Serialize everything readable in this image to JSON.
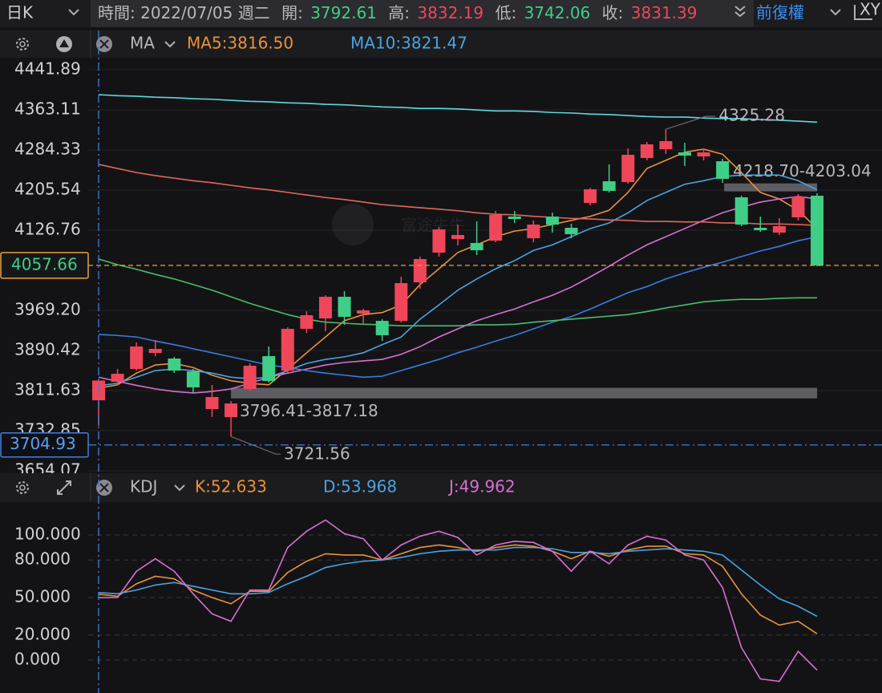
{
  "toolbar": {
    "period": "日K",
    "time": "時間: 2022/07/05 週二",
    "open_label": "開:",
    "open": 3792.61,
    "high_label": "高:",
    "high": 3832.19,
    "low_label": "低:",
    "low": 3742.06,
    "close_label": "收:",
    "close": 3831.39,
    "adjust": "前復權",
    "axis_toggle": "XY"
  },
  "chart_data": [
    {
      "type": "candlestick",
      "indicator": "MA",
      "watermark": "富途牛牛",
      "up_color": "#f0465a",
      "down_color": "#3fce86",
      "open": [
        3792.61,
        3829.0,
        3854.2,
        3885.7,
        3874.7,
        3849.5,
        3775.4,
        3759.7,
        3814.8,
        3879.4,
        3851.0,
        3933.0,
        3953.5,
        3996.0,
        3962.9,
        3948.7,
        3948.7,
        4024.4,
        4082.7,
        4109.4,
        4101.6,
        4106.3,
        4153.6,
        4111.0,
        4153.6,
        4131.5,
        4180.3,
        4222.9,
        4221.3,
        4268.6,
        4285.9,
        4279.6,
        4271.7,
        4262.3,
        4191.4,
        4131.5,
        4122.1,
        4152.0,
        4194.5
      ],
      "high": [
        3832.19,
        3854.2,
        3906.2,
        3910.9,
        3877.8,
        3854.2,
        3822.7,
        3791.2,
        3865.2,
        3898.3,
        3936.1,
        3967.6,
        3999.2,
        4007.0,
        3972.4,
        3951.9,
        4035.4,
        4074.8,
        4133.1,
        4137.8,
        4144.1,
        4164.6,
        4164.6,
        4145.7,
        4161.4,
        4139.4,
        4210.3,
        4256.0,
        4287.5,
        4300.1,
        4325.28,
        4298.5,
        4287.5,
        4267.0,
        4194.5,
        4153.6,
        4150.4,
        4197.7,
        4199.3
      ],
      "low": [
        3742.06,
        3822.7,
        3851.0,
        3879.4,
        3846.3,
        3806.9,
        3759.7,
        3721.56,
        3811.7,
        3827.4,
        3846.3,
        3925.1,
        3928.3,
        3940.9,
        3942.4,
        3909.3,
        3945.6,
        4011.8,
        4074.8,
        4096.8,
        4077.9,
        4103.1,
        4141.0,
        4103.1,
        4122.1,
        4111.0,
        4175.6,
        4200.8,
        4218.2,
        4263.9,
        4276.5,
        4252.8,
        4263.9,
        4219.7,
        4134.7,
        4123.6,
        4117.3,
        4145.7,
        4055.9
      ],
      "close": [
        3831.39,
        3844.7,
        3898.3,
        3893.6,
        3851.0,
        3818.0,
        3799.1,
        3786.4,
        3860.5,
        3830.6,
        3933.0,
        3959.8,
        3996.0,
        3956.6,
        3969.2,
        3920.4,
        4022.8,
        4070.1,
        4128.4,
        4117.3,
        4087.4,
        4156.7,
        4148.8,
        4137.8,
        4137.8,
        4118.9,
        4207.1,
        4204.0,
        4274.9,
        4295.4,
        4301.7,
        4273.3,
        4279.6,
        4227.6,
        4137.8,
        4126.8,
        4134.7,
        4193.0,
        4057.66
      ],
      "series": [
        {
          "name": "MA5",
          "label": "MA5:3816.50",
          "color": "#e8923a",
          "values": [
            3816.5,
            3823,
            3846,
            3862,
            3865,
            3857,
            3842,
            3831,
            3826,
            3823,
            3854,
            3886,
            3917,
            3949,
            3961,
            3965,
            3980,
            4020,
            4051,
            4083,
            4098,
            4114,
            4125,
            4130,
            4138,
            4146,
            4154,
            4166,
            4201,
            4248,
            4264,
            4280,
            4286,
            4276,
            4240,
            4201,
            4188,
            4166,
            4130
          ]
        },
        {
          "name": "MA10",
          "label": "MA10:3821.47",
          "color": "#4aa3e0",
          "values": [
            3821.47,
            3826,
            3838,
            3851,
            3854,
            3851,
            3846,
            3838,
            3835,
            3838,
            3851,
            3865,
            3873,
            3878,
            3886,
            3902,
            3917,
            3952,
            3980,
            4009,
            4031,
            4051,
            4067,
            4087,
            4098,
            4114,
            4130,
            4141,
            4161,
            4185,
            4201,
            4217,
            4224,
            4232,
            4235,
            4235,
            4235,
            4224,
            4206
          ]
        },
        {
          "color": "#d86fd0",
          "values": [
            3838,
            3830,
            3822,
            3815,
            3810,
            3807,
            3810,
            3815,
            3826,
            3838,
            3846,
            3854,
            3862,
            3867,
            3870,
            3873,
            3883,
            3898,
            3917,
            3933,
            3949,
            3961,
            3972,
            3986,
            3999,
            4015,
            4035,
            4056,
            4078,
            4098,
            4114,
            4130,
            4146,
            4161,
            4172,
            4182,
            4188,
            4193,
            4188
          ]
        },
        {
          "color": "#3a7be0",
          "values": [
            3922,
            3920,
            3917,
            3909,
            3902,
            3894,
            3886,
            3878,
            3870,
            3862,
            3857,
            3851,
            3846,
            3842,
            3838,
            3840,
            3851,
            3862,
            3873,
            3886,
            3897,
            3909,
            3920,
            3933,
            3946,
            3957,
            3972,
            3988,
            4004,
            4016,
            4031,
            4043,
            4054,
            4064,
            4075,
            4086,
            4095,
            4106,
            4114
          ]
        },
        {
          "color": "#4cbb6a",
          "values": [
            4070,
            4059,
            4050,
            4040,
            4031,
            4020,
            4009,
            3996,
            3983,
            3972,
            3961,
            3952,
            3946,
            3944,
            3942,
            3941,
            3939,
            3939,
            3939,
            3939,
            3941,
            3941,
            3942,
            3946,
            3949,
            3952,
            3955,
            3958,
            3961,
            3967,
            3974,
            3980,
            3986,
            3989,
            3991,
            3991,
            3993,
            3994,
            3994
          ]
        },
        {
          "color": "#e0685a",
          "values": [
            4256,
            4248,
            4240,
            4234,
            4229,
            4224,
            4220,
            4215,
            4210,
            4206,
            4201,
            4196,
            4191,
            4187,
            4182,
            4177,
            4174,
            4171,
            4168,
            4165,
            4161,
            4158,
            4157,
            4154,
            4152,
            4150,
            4149,
            4147,
            4146,
            4144,
            4144,
            4143,
            4143,
            4141,
            4141,
            4139,
            4139,
            4138,
            4136
          ]
        },
        {
          "color": "#5fd8e0",
          "values": [
            4393,
            4391,
            4390,
            4388,
            4387,
            4385,
            4384,
            4382,
            4380,
            4379,
            4377,
            4376,
            4374,
            4373,
            4371,
            4369,
            4368,
            4366,
            4366,
            4365,
            4363,
            4361,
            4361,
            4360,
            4358,
            4357,
            4355,
            4354,
            4352,
            4350,
            4349,
            4349,
            4347,
            4346,
            4346,
            4344,
            4343,
            4341,
            4339
          ]
        }
      ],
      "ylim": [
        3652.52,
        4515.95
      ],
      "yticks": [
        4441.89,
        4363.11,
        4284.33,
        4205.54,
        4126.76,
        {
          "value": 3969.2,
          "label": "3969.20"
        },
        3890.42,
        3811.63,
        3732.85,
        3654.07
      ],
      "grid": true,
      "high_marker": 4325.28,
      "low_marker": 3721.56,
      "bands": [
        {
          "label": "3796.41-3817.18",
          "values": [
            3796.41,
            3817.18
          ]
        },
        {
          "label": "4218.70-4203.04",
          "values": [
            4218.7,
            4203.04
          ]
        }
      ],
      "current_price": 4057.66,
      "crosshair": 3704.93
    },
    {
      "type": "line",
      "indicator": "KDJ",
      "series": [
        {
          "name": "K",
          "label": "K:52.633",
          "color": "#e8923a",
          "values": [
            52.633,
            51,
            61,
            67,
            65,
            56,
            50,
            45,
            55,
            55,
            70,
            79,
            85,
            84,
            84,
            80,
            85,
            90,
            92,
            90,
            87,
            90,
            92,
            91,
            87,
            81,
            87,
            83,
            88,
            91,
            91,
            85,
            84,
            75,
            53,
            36,
            28,
            31,
            21
          ]
        },
        {
          "name": "D",
          "label": "D:53.968",
          "color": "#4aa3e0",
          "values": [
            53.968,
            53,
            56,
            60,
            62,
            59,
            56,
            53,
            53,
            54,
            61,
            67,
            74,
            77,
            79,
            80,
            82,
            85,
            87,
            88,
            88,
            88,
            90,
            90,
            89,
            86,
            86,
            85,
            87,
            88,
            89,
            88,
            87,
            84,
            72,
            60,
            49,
            43,
            35
          ]
        },
        {
          "name": "J",
          "label": "J:49.962",
          "color": "#d86fd0",
          "values": [
            49.962,
            50,
            71,
            81,
            71,
            53,
            37,
            31,
            56,
            56,
            90,
            103,
            112,
            101,
            97,
            80,
            92,
            99,
            103,
            98,
            84,
            92,
            95,
            94,
            87,
            71,
            87,
            77,
            92,
            99,
            96,
            84,
            80,
            58,
            10,
            -15,
            -17,
            7,
            -8
          ]
        }
      ],
      "ylim": [
        -26.3,
        125
      ],
      "yticks": [
        {
          "value": 100,
          "label": "100.000"
        },
        {
          "value": 80,
          "label": "80.000"
        },
        {
          "value": 50,
          "label": "50.000"
        },
        {
          "value": 20,
          "label": "20.000"
        },
        {
          "value": 0,
          "label": "0.000"
        }
      ],
      "grid": true
    }
  ]
}
